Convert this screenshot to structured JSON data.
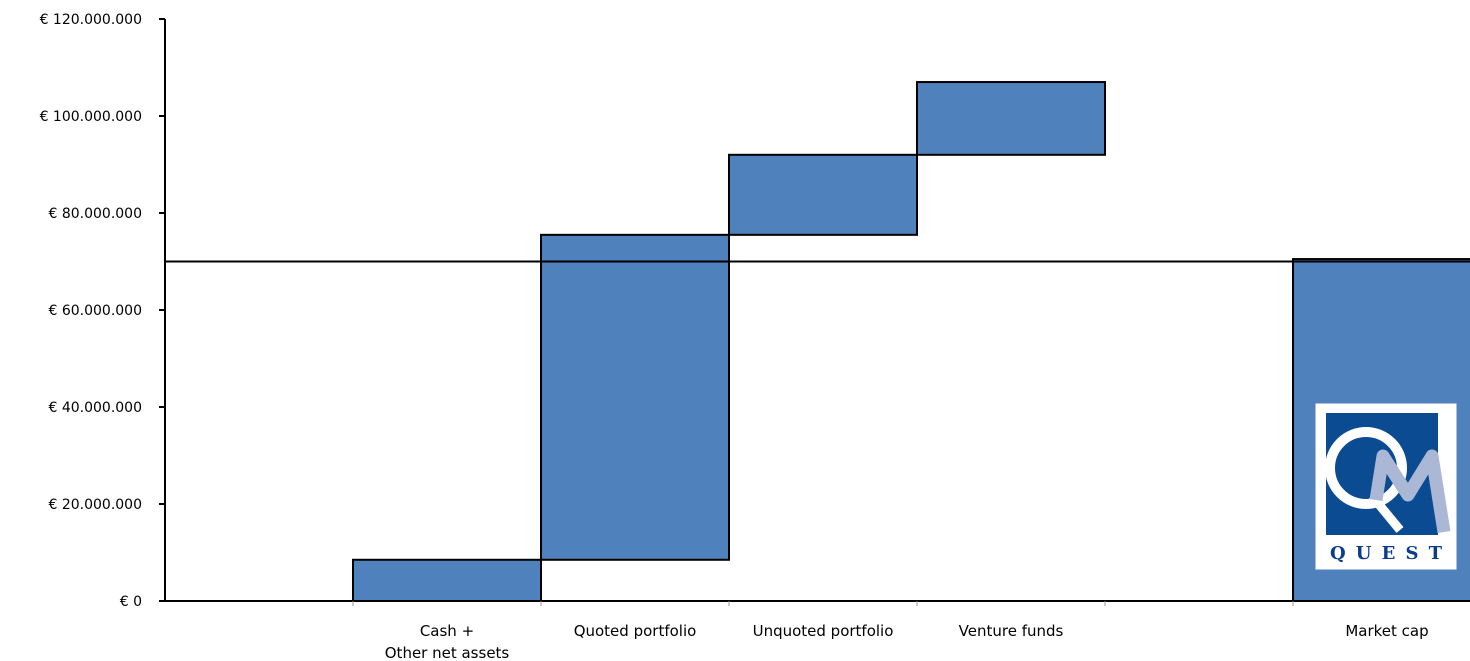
{
  "chart_data": {
    "type": "bar",
    "subtype": "waterfall",
    "title": "",
    "xlabel": "",
    "ylabel": "",
    "ylim": [
      0,
      120000000
    ],
    "y_ticks": [
      0,
      20000000,
      40000000,
      60000000,
      80000000,
      100000000,
      120000000
    ],
    "y_tick_labels": [
      "€ 0",
      "€ 20.000.000",
      "€ 40.000.000",
      "€ 60.000.000",
      "€ 80.000.000",
      "€ 100.000.000",
      "€ 120.000.000"
    ],
    "categories": [
      "",
      "Cash +\nOther net assets",
      "Quoted portfolio",
      "Unquoted portfolio",
      "Venture funds",
      "",
      "Market cap"
    ],
    "bars": [
      {
        "category": "",
        "start": 0,
        "end": 0
      },
      {
        "category": "Cash +\nOther net assets",
        "start": 0,
        "end": 8500000
      },
      {
        "category": "Quoted portfolio",
        "start": 8500000,
        "end": 75500000
      },
      {
        "category": "Unquoted portfolio",
        "start": 75500000,
        "end": 92000000
      },
      {
        "category": "Venture funds",
        "start": 92000000,
        "end": 107000000
      },
      {
        "category": "",
        "start": 0,
        "end": 0
      },
      {
        "category": "Market cap",
        "start": 0,
        "end": 70500000
      }
    ],
    "reference_line": 70000000,
    "bar_color": "#4f81bd",
    "bar_outline": "#000000",
    "grid": false,
    "legend": "none"
  },
  "logo": {
    "text": "QUEST",
    "name": "quest-logo"
  }
}
